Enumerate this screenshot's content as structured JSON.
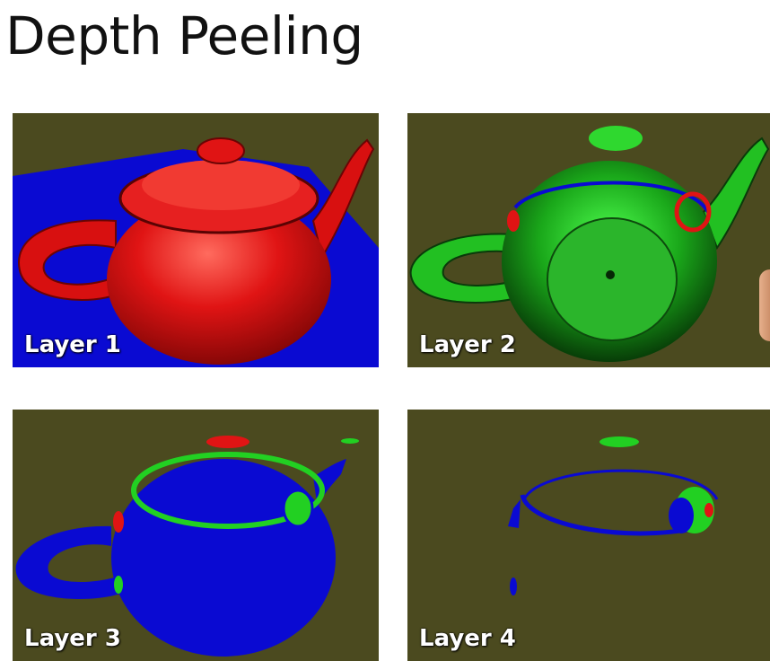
{
  "slide": {
    "title": "Depth Peeling",
    "panels": [
      {
        "label": "Layer 1",
        "colors": {
          "teapot": "#e01414",
          "plane": "#0a0ad2",
          "background": "#4b4a1f"
        }
      },
      {
        "label": "Layer 2",
        "colors": {
          "teapot": "#1ec81e",
          "rim": "#0a0ad2",
          "accent": "#e01414"
        }
      },
      {
        "label": "Layer 3",
        "colors": {
          "teapot": "#0a0ad2",
          "rim": "#1ec81e",
          "accent": "#e01414"
        }
      },
      {
        "label": "Layer 4",
        "colors": {
          "rim": "#0a0ad2",
          "inner": "#1ec81e",
          "accent": "#e01414"
        }
      }
    ]
  }
}
